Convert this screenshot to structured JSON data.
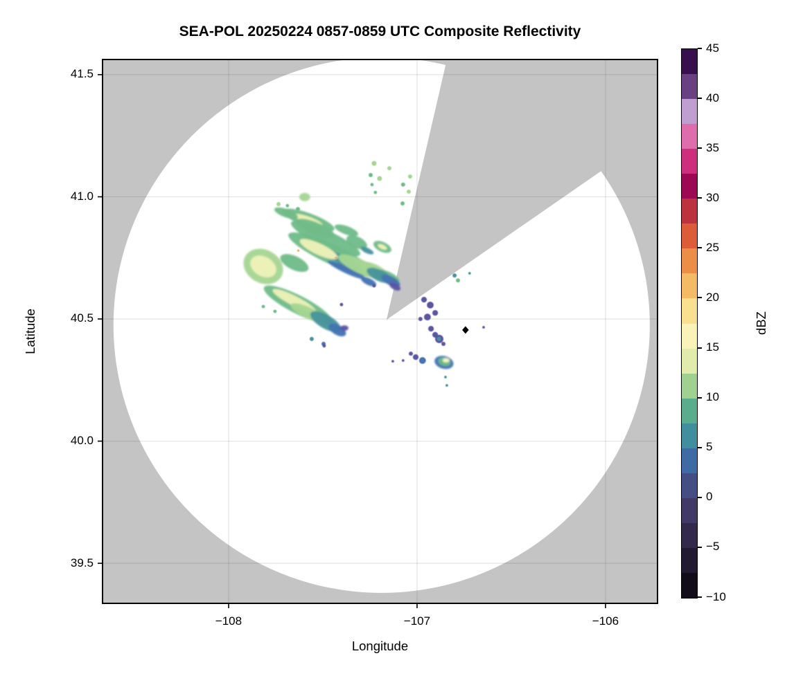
{
  "figure": {
    "title": "SEA-POL 20250224 0857-0859 UTC Composite Reflectivity",
    "xlabel": "Longitude",
    "ylabel": "Latitude"
  },
  "colorbar": {
    "label": "dBZ",
    "min": -10,
    "max": 45,
    "tick_step": 5,
    "tick_values": [
      45,
      40,
      35,
      30,
      25,
      20,
      15,
      10,
      5,
      0,
      -5,
      -10
    ],
    "tick_labels": [
      "45",
      "40",
      "35",
      "30",
      "25",
      "20",
      "15",
      "10",
      "5",
      "0",
      "−5",
      "−10"
    ],
    "bands_top_to_bottom": [
      "#38104e",
      "#6b4082",
      "#c09fd0",
      "#de6eab",
      "#cd2f7d",
      "#9d0855",
      "#bd323f",
      "#dc5c3a",
      "#ec8e48",
      "#f5ba66",
      "#f9df90",
      "#f9f3ba",
      "#e1ecac",
      "#9fd291",
      "#5aac8c",
      "#418e9e",
      "#3f6ba5",
      "#454d85",
      "#413a66",
      "#33294a",
      "#221a31",
      "#110c18"
    ]
  },
  "chart_data": {
    "type": "heatmap",
    "subtype": "radar-composite-reflectivity-map",
    "title": "SEA-POL 20250224 0857-0859 UTC Composite Reflectivity",
    "xlabel": "Longitude",
    "ylabel": "Latitude",
    "xlim": [
      -108.669,
      -105.724
    ],
    "ylim": [
      39.336,
      41.562
    ],
    "x_ticks": [
      -108,
      -107,
      -106
    ],
    "x_tick_labels": [
      "−108",
      "−107",
      "−106"
    ],
    "y_ticks": [
      39.5,
      40.0,
      40.5,
      41.0,
      41.5
    ],
    "y_tick_labels": [
      "39.5",
      "40.0",
      "40.5",
      "41.0",
      "41.5"
    ],
    "grid": true,
    "legend": "colorbar right, label dBZ, range -10 to 45",
    "background_outside_coverage": "#c4c4c4",
    "coverage": {
      "center_lon": -107.188,
      "center_lat": 40.475,
      "radius_deg_lon": 1.423,
      "fill": "#ffffff"
    },
    "blocked_sector_polygon_lonlat": [
      [
        -107.162,
        40.497
      ],
      [
        -106.849,
        41.537
      ],
      [
        -106.831,
        41.565
      ],
      [
        -105.757,
        41.565
      ],
      [
        -105.757,
        41.239
      ],
      [
        -106.037,
        41.098
      ]
    ],
    "site_marker": {
      "lon": -106.743,
      "lat": 40.455,
      "shape": "diamond",
      "color": "#000000"
    },
    "palette": {
      "purple": "#5b55a2",
      "blue": "#4473b3",
      "teal": "#47939b",
      "green": "#6fbb88",
      "lightgreen": "#a6d593",
      "paleyellow": "#eef3b8",
      "yellow": "#f8f6c6",
      "orange": "#eba45f"
    },
    "approx_dbz_by_color": {
      "purple": 2,
      "blue": 5,
      "teal": 8,
      "green": 10,
      "lightgreen": 13,
      "paleyellow": 16,
      "yellow": 18,
      "orange": 22
    },
    "echo_blobs_format": "[lon, lat, rx_deg_lon, ry_deg_lat, rotation_deg_cw, color_key]",
    "echo_blobs": [
      [
        -107.577,
        40.905,
        0.147,
        0.028,
        20,
        "green"
      ],
      [
        -107.577,
        40.905,
        0.081,
        0.014,
        20,
        "paleyellow"
      ],
      [
        -107.54,
        40.871,
        0.11,
        0.025,
        22,
        "green"
      ],
      [
        -107.485,
        40.829,
        0.202,
        0.034,
        25,
        "green"
      ],
      [
        -107.375,
        40.863,
        0.066,
        0.017,
        20,
        "green"
      ],
      [
        -107.449,
        40.763,
        0.257,
        0.04,
        25,
        "green"
      ],
      [
        -107.423,
        40.752,
        0.202,
        0.017,
        25,
        "teal"
      ],
      [
        -107.522,
        40.786,
        0.11,
        0.023,
        25,
        "paleyellow"
      ],
      [
        -107.375,
        40.701,
        0.11,
        0.014,
        25,
        "blue"
      ],
      [
        -107.301,
        40.715,
        0.129,
        0.028,
        25,
        "lightgreen"
      ],
      [
        -107.32,
        40.814,
        0.059,
        0.023,
        25,
        "green"
      ],
      [
        -107.265,
        40.78,
        0.037,
        0.011,
        25,
        "teal"
      ],
      [
        -107.184,
        40.795,
        0.051,
        0.02,
        25,
        "green"
      ],
      [
        -107.184,
        40.795,
        0.026,
        0.009,
        25,
        "paleyellow"
      ],
      [
        -107.228,
        40.701,
        0.081,
        0.023,
        25,
        "lightgreen"
      ],
      [
        -107.154,
        40.673,
        0.066,
        0.02,
        25,
        "green"
      ],
      [
        -107.199,
        40.678,
        0.074,
        0.023,
        25,
        "teal"
      ],
      [
        -107.14,
        40.656,
        0.055,
        0.018,
        28,
        "blue"
      ],
      [
        -107.118,
        40.633,
        0.033,
        0.013,
        30,
        "purple"
      ],
      [
        -107.816,
        40.715,
        0.11,
        0.068,
        30,
        "lightgreen"
      ],
      [
        -107.816,
        40.715,
        0.074,
        0.04,
        30,
        "paleyellow"
      ],
      [
        -107.651,
        40.729,
        0.081,
        0.028,
        25,
        "green"
      ],
      [
        -107.695,
        40.933,
        0.066,
        0.017,
        20,
        "green"
      ],
      [
        -107.596,
        40.999,
        0.029,
        0.017,
        0,
        "lightgreen"
      ],
      [
        -107.632,
        40.559,
        0.202,
        0.037,
        27,
        "green"
      ],
      [
        -107.651,
        40.574,
        0.129,
        0.02,
        27,
        "paleyellow"
      ],
      [
        -107.577,
        40.525,
        0.103,
        0.023,
        25,
        "lightgreen"
      ],
      [
        -107.485,
        40.489,
        0.092,
        0.028,
        30,
        "teal"
      ],
      [
        -107.423,
        40.455,
        0.051,
        0.02,
        30,
        "blue"
      ],
      [
        -107.386,
        40.463,
        0.022,
        0.011,
        0,
        "purple"
      ],
      [
        -107.257,
        40.653,
        0.044,
        0.014,
        25,
        "blue"
      ],
      [
        -106.857,
        40.322,
        0.051,
        0.026,
        15,
        "blue"
      ],
      [
        -106.855,
        40.325,
        0.033,
        0.017,
        15,
        "green"
      ],
      [
        -106.846,
        40.331,
        0.018,
        0.009,
        0,
        "yellow"
      ]
    ],
    "echo_specks_format": "[lon, lat, radius_deg_lon, color_key]",
    "echo_specks": [
      [
        -106.963,
        40.579,
        0.015,
        "purple"
      ],
      [
        -106.93,
        40.557,
        0.018,
        "purple"
      ],
      [
        -106.904,
        40.525,
        0.015,
        "purple"
      ],
      [
        -106.945,
        40.508,
        0.018,
        "purple"
      ],
      [
        -106.982,
        40.5,
        0.011,
        "purple"
      ],
      [
        -106.926,
        40.46,
        0.015,
        "purple"
      ],
      [
        -106.904,
        40.435,
        0.015,
        "purple"
      ],
      [
        -106.882,
        40.418,
        0.022,
        "purple"
      ],
      [
        -106.884,
        40.419,
        0.011,
        "teal"
      ],
      [
        -106.86,
        40.398,
        0.011,
        "purple"
      ],
      [
        -107.007,
        40.344,
        0.015,
        "purple"
      ],
      [
        -106.971,
        40.33,
        0.018,
        "blue"
      ],
      [
        -107.033,
        40.358,
        0.011,
        "purple"
      ],
      [
        -107.129,
        40.327,
        0.007,
        "purple"
      ],
      [
        -107.074,
        40.33,
        0.007,
        "purple"
      ],
      [
        -106.801,
        40.678,
        0.011,
        "teal"
      ],
      [
        -106.783,
        40.658,
        0.011,
        "green"
      ],
      [
        -106.721,
        40.687,
        0.007,
        "teal"
      ],
      [
        -106.849,
        40.262,
        0.007,
        "teal"
      ],
      [
        -106.842,
        40.228,
        0.007,
        "teal"
      ],
      [
        -106.647,
        40.466,
        0.007,
        "purple"
      ],
      [
        -107.228,
        41.137,
        0.013,
        "lightgreen"
      ],
      [
        -107.147,
        41.117,
        0.011,
        "lightgreen"
      ],
      [
        -107.246,
        41.089,
        0.011,
        "green"
      ],
      [
        -107.199,
        41.075,
        0.013,
        "lightgreen"
      ],
      [
        -107.037,
        41.083,
        0.011,
        "lightgreen"
      ],
      [
        -107.239,
        41.05,
        0.009,
        "green"
      ],
      [
        -107.074,
        41.05,
        0.011,
        "green"
      ],
      [
        -107.221,
        41.018,
        0.009,
        "green"
      ],
      [
        -107.044,
        41.021,
        0.011,
        "lightgreen"
      ],
      [
        -107.077,
        40.973,
        0.011,
        "green"
      ],
      [
        -107.735,
        40.97,
        0.011,
        "lightgreen"
      ],
      [
        -107.688,
        40.964,
        0.009,
        "green"
      ],
      [
        -107.632,
        40.95,
        0.011,
        "green"
      ],
      [
        -107.816,
        40.551,
        0.009,
        "green"
      ],
      [
        -107.754,
        40.531,
        0.009,
        "green"
      ],
      [
        -107.559,
        40.418,
        0.011,
        "teal"
      ],
      [
        -107.496,
        40.398,
        0.011,
        "blue"
      ],
      [
        -107.401,
        40.559,
        0.009,
        "purple"
      ],
      [
        -107.228,
        40.636,
        0.009,
        "purple"
      ],
      [
        -107.493,
        40.39,
        0.009,
        "purple"
      ],
      [
        -107.63,
        40.78,
        0.006,
        "orange"
      ],
      [
        -107.43,
        40.75,
        0.005,
        "orange"
      ]
    ]
  }
}
